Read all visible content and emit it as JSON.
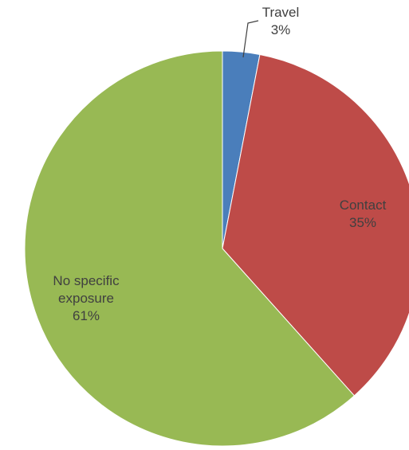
{
  "chart_data": {
    "type": "pie",
    "title": "",
    "slices": [
      {
        "label": "Travel",
        "display_label": "Travel",
        "percent_label": "3%",
        "value": 3,
        "color": "#4a7ebb"
      },
      {
        "label": "Contact",
        "display_label": "Contact",
        "percent_label": "35%",
        "value": 35,
        "color": "#be4b48"
      },
      {
        "label": "No specific exposure",
        "display_label": "No specific\nexposure",
        "percent_label": "61%",
        "value": 61,
        "color": "#98b954"
      }
    ],
    "start_angle_deg": 0,
    "direction": "clockwise",
    "legend": "none",
    "label_color": "#404040",
    "leader_line": "Travel"
  }
}
